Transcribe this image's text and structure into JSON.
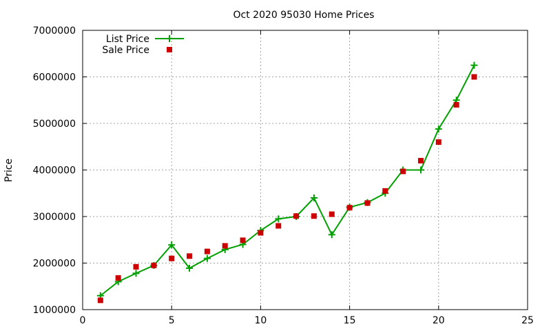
{
  "chart_data": {
    "type": "line",
    "title": "Oct 2020 95030 Home Prices",
    "xlabel": "",
    "ylabel": "Price",
    "xlim": [
      0,
      25
    ],
    "ylim": [
      1000000,
      7000000
    ],
    "xticks": [
      0,
      5,
      10,
      15,
      20,
      25
    ],
    "yticks": [
      1000000,
      2000000,
      3000000,
      4000000,
      5000000,
      6000000,
      7000000
    ],
    "grid": true,
    "legend_position": "top-left",
    "series": [
      {
        "name": "List Price",
        "style": "line+plus-markers",
        "color": "#00a000",
        "x": [
          1,
          2,
          3,
          4,
          5,
          6,
          7,
          8,
          9,
          10,
          11,
          12,
          13,
          14,
          15,
          16,
          17,
          18,
          19,
          20,
          21,
          22
        ],
        "y": [
          1300000,
          1600000,
          1780000,
          1950000,
          2390000,
          1890000,
          2100000,
          2290000,
          2400000,
          2700000,
          2950000,
          3000000,
          3400000,
          2610000,
          3200000,
          3300000,
          3500000,
          4000000,
          4000000,
          4880000,
          5500000,
          6250000
        ]
      },
      {
        "name": "Sale Price",
        "style": "square-markers",
        "color": "#cc0000",
        "x": [
          1,
          2,
          3,
          4,
          5,
          6,
          7,
          8,
          9,
          10,
          11,
          12,
          13,
          14,
          15,
          16,
          17,
          18,
          19,
          20,
          21,
          22
        ],
        "y": [
          1200000,
          1680000,
          1920000,
          1950000,
          2100000,
          2150000,
          2250000,
          2370000,
          2490000,
          2650000,
          2800000,
          3010000,
          3010000,
          3050000,
          3190000,
          3290000,
          3550000,
          3970000,
          4200000,
          4600000,
          5400000,
          6000000
        ]
      }
    ]
  }
}
